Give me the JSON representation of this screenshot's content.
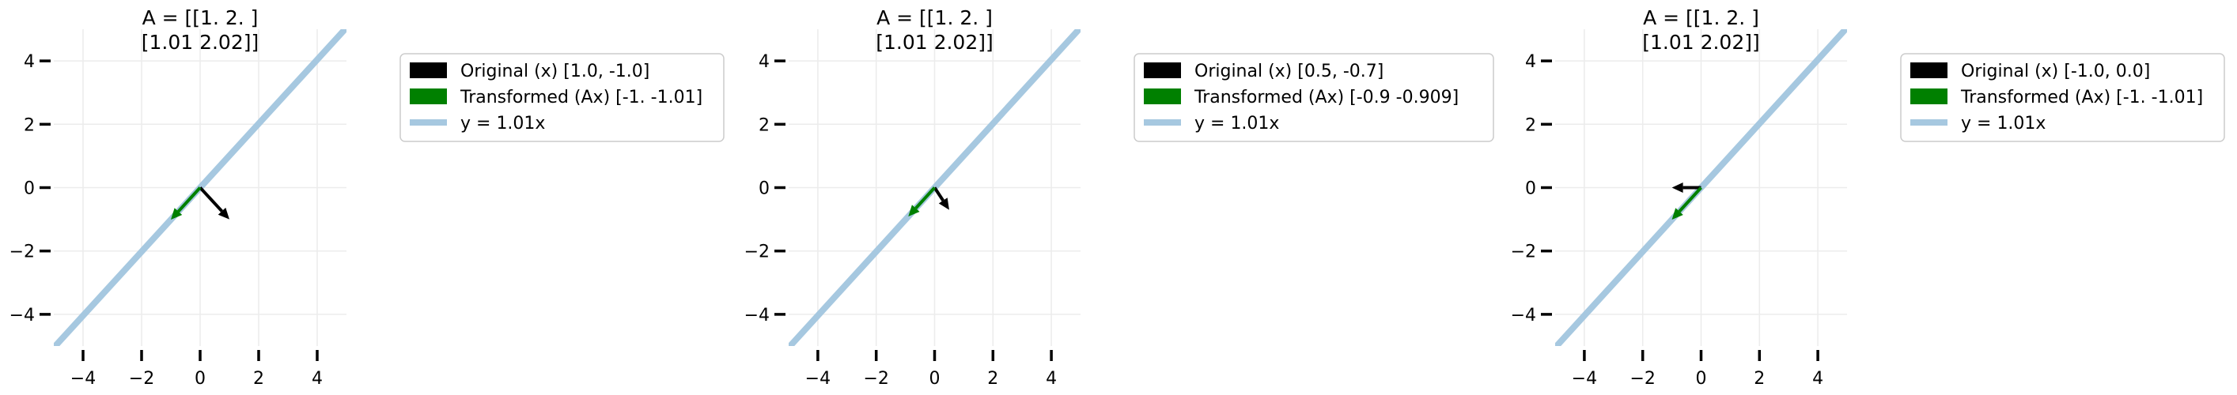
{
  "chart_data": [
    {
      "type": "line",
      "title_lines": [
        "A = [[1.   2.  ]",
        "[1.01 2.02]]"
      ],
      "xlim": [
        -5,
        5
      ],
      "ylim": [
        -5,
        5
      ],
      "xticks": [
        -4,
        -2,
        0,
        2,
        4
      ],
      "yticks": [
        -4,
        -2,
        0,
        2,
        4
      ],
      "tick_labels": [
        "−4",
        "−2",
        "0",
        "2",
        "4"
      ],
      "grid": true,
      "legend_position": "outside-right",
      "series": [
        {
          "name": "Original (x) [1.0, -1.0]",
          "kind": "arrow",
          "color": "#000000",
          "vector": [
            1.0,
            -1.0
          ]
        },
        {
          "name": "Transformed (Ax) [-1.   -1.01]",
          "kind": "arrow",
          "color": "#008000",
          "vector": [
            -1.0,
            -1.01
          ]
        },
        {
          "name": "y = 1.01x",
          "kind": "line",
          "color": "#a6c8e0",
          "slope": 1.01
        }
      ]
    },
    {
      "type": "line",
      "title_lines": [
        "A = [[1.   2.  ]",
        "[1.01 2.02]]"
      ],
      "xlim": [
        -5,
        5
      ],
      "ylim": [
        -5,
        5
      ],
      "xticks": [
        -4,
        -2,
        0,
        2,
        4
      ],
      "yticks": [
        -4,
        -2,
        0,
        2,
        4
      ],
      "tick_labels": [
        "−4",
        "−2",
        "0",
        "2",
        "4"
      ],
      "grid": true,
      "legend_position": "outside-right",
      "series": [
        {
          "name": "Original (x) [0.5, -0.7]",
          "kind": "arrow",
          "color": "#000000",
          "vector": [
            0.5,
            -0.7
          ]
        },
        {
          "name": "Transformed (Ax) [-0.9   -0.909]",
          "kind": "arrow",
          "color": "#008000",
          "vector": [
            -0.9,
            -0.909
          ]
        },
        {
          "name": "y = 1.01x",
          "kind": "line",
          "color": "#a6c8e0",
          "slope": 1.01
        }
      ]
    },
    {
      "type": "line",
      "title_lines": [
        "A = [[1.   2.  ]",
        "[1.01 2.02]]"
      ],
      "xlim": [
        -5,
        5
      ],
      "ylim": [
        -5,
        5
      ],
      "xticks": [
        -4,
        -2,
        0,
        2,
        4
      ],
      "yticks": [
        -4,
        -2,
        0,
        2,
        4
      ],
      "tick_labels": [
        "−4",
        "−2",
        "0",
        "2",
        "4"
      ],
      "grid": true,
      "legend_position": "outside-right",
      "series": [
        {
          "name": "Original (x) [-1.0, 0.0]",
          "kind": "arrow",
          "color": "#000000",
          "vector": [
            -1.0,
            0.0
          ]
        },
        {
          "name": "Transformed (Ax) [-1.   -1.01]",
          "kind": "arrow",
          "color": "#008000",
          "vector": [
            -1.0,
            -1.01
          ]
        },
        {
          "name": "y = 1.01x",
          "kind": "line",
          "color": "#a6c8e0",
          "slope": 1.01
        }
      ]
    }
  ]
}
